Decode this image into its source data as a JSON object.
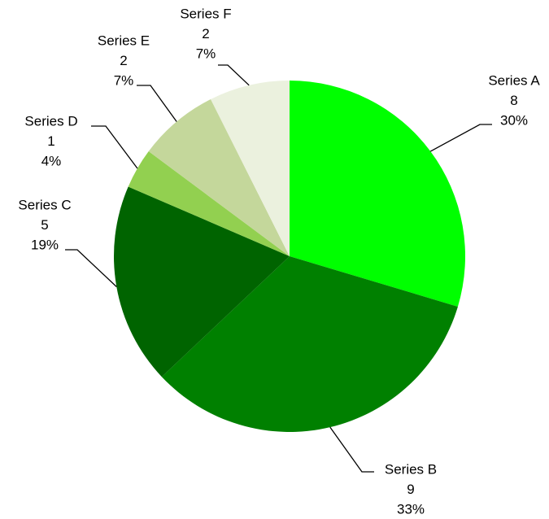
{
  "chart_data": {
    "type": "pie",
    "categories": [
      "Series A",
      "Series B",
      "Series C",
      "Series D",
      "Series E",
      "Series F"
    ],
    "values": [
      8,
      9,
      5,
      1,
      2,
      2
    ],
    "percent_labels": [
      "30%",
      "33%",
      "19%",
      "4%",
      "7%",
      "7%"
    ],
    "colors": [
      "#00ff00",
      "#008000",
      "#006400",
      "#92d050",
      "#c4d79b",
      "#ebf1de"
    ]
  }
}
